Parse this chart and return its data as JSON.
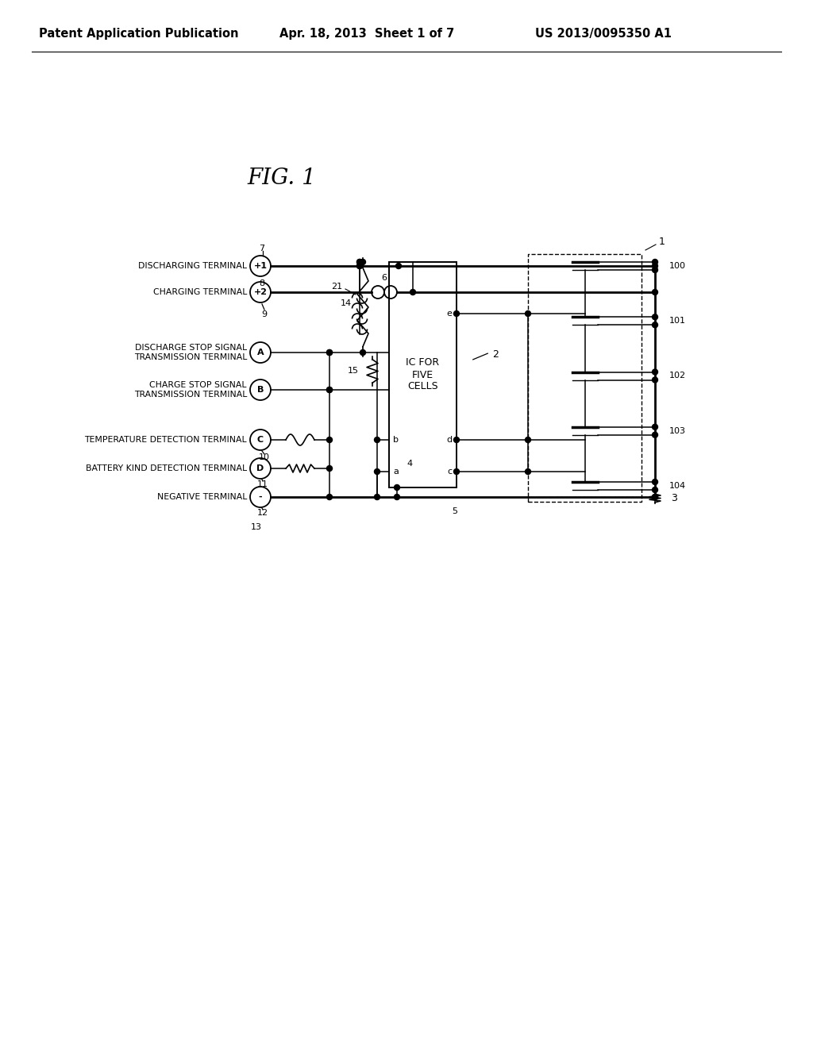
{
  "bg_color": "#ffffff",
  "header_left": "Patent Application Publication",
  "header_mid": "Apr. 18, 2013  Sheet 1 of 7",
  "header_right": "US 2013/0095350 A1",
  "fig_title": "FIG. 1",
  "terminal_symbols": [
    "+1",
    "+2",
    "A",
    "B",
    "C",
    "D",
    "-"
  ],
  "terminal_labels": [
    "DISCHARGING TERMINAL",
    "CHARGING TERMINAL",
    "DISCHARGE STOP SIGNAL\nTRANSMISSION TERMINAL",
    "CHARGE STOP SIGNAL\nTRANSMISSION TERMINAL",
    "TEMPERATURE DETECTION TERMINAL",
    "BATTERY KIND DETECTION TERMINAL",
    "NEGATIVE TERMINAL"
  ],
  "ic_label": "IC FOR\nFIVE\nCELLS",
  "battery_numbers": [
    "100",
    "101",
    "102",
    "103",
    "104"
  ],
  "lw_thick": 2.0,
  "lw_med": 1.4,
  "lw_thin": 1.1
}
